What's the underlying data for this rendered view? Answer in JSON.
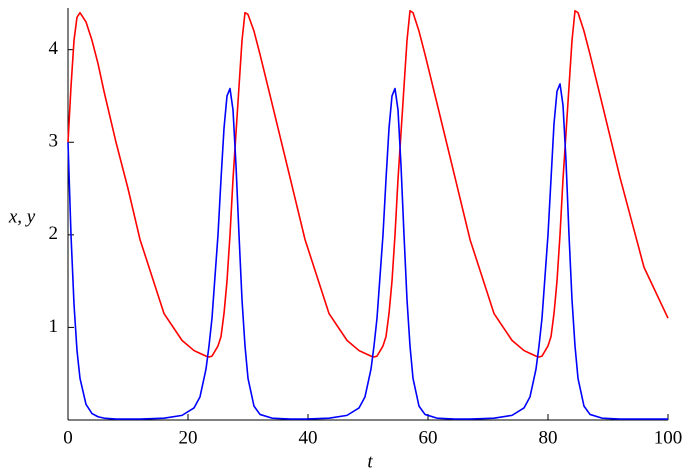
{
  "chart_data": {
    "type": "line",
    "xlabel": "t",
    "ylabel": "x, y",
    "x": [
      0,
      0.5,
      1,
      1.5,
      2,
      3,
      4,
      5,
      6,
      8,
      10,
      12,
      16,
      19,
      21,
      22,
      23,
      23.5,
      24,
      25,
      25.5,
      26,
      26.5,
      27,
      27.5,
      28,
      28.5,
      29,
      29.5,
      30,
      31,
      32,
      34,
      37,
      39.5,
      43.5,
      46.5,
      48.5,
      49.5,
      50.5,
      51,
      51.5,
      52.5,
      53,
      53.5,
      54,
      54.5,
      55,
      55.5,
      56,
      56.5,
      57,
      57.5,
      58.5,
      59.5,
      61.5,
      64.5,
      67,
      71,
      74,
      76,
      77,
      78,
      78.5,
      79,
      80,
      80.5,
      81,
      81.5,
      82,
      82.5,
      83,
      83.5,
      84,
      84.5,
      85,
      86,
      87,
      89,
      92,
      96,
      100
    ],
    "series": [
      {
        "name": "y",
        "color": "#ff0000",
        "values": [
          3.0,
          3.6,
          4.1,
          4.35,
          4.4,
          4.3,
          4.1,
          3.85,
          3.55,
          3.0,
          2.5,
          1.95,
          1.15,
          0.86,
          0.75,
          0.72,
          0.69,
          0.68,
          0.69,
          0.8,
          0.9,
          1.15,
          1.5,
          2.0,
          2.6,
          3.1,
          3.6,
          4.1,
          4.4,
          4.38,
          4.2,
          3.95,
          3.42,
          2.62,
          1.95,
          1.15,
          0.86,
          0.75,
          0.72,
          0.69,
          0.68,
          0.69,
          0.8,
          0.9,
          1.15,
          1.5,
          2.0,
          2.6,
          3.1,
          3.6,
          4.1,
          4.42,
          4.4,
          4.2,
          3.95,
          3.42,
          2.62,
          1.95,
          1.15,
          0.86,
          0.75,
          0.72,
          0.69,
          0.68,
          0.69,
          0.8,
          0.9,
          1.15,
          1.5,
          2.0,
          2.6,
          3.1,
          3.6,
          4.1,
          4.42,
          4.4,
          4.2,
          3.95,
          3.42,
          2.62,
          1.65,
          1.1
        ]
      },
      {
        "name": "x",
        "color": "#0000ff",
        "values": [
          3.0,
          2.0,
          1.25,
          0.75,
          0.45,
          0.17,
          0.07,
          0.035,
          0.02,
          0.01,
          0.01,
          0.01,
          0.02,
          0.05,
          0.13,
          0.25,
          0.55,
          0.8,
          1.1,
          2.0,
          2.6,
          3.15,
          3.5,
          3.58,
          3.35,
          2.75,
          2.0,
          1.3,
          0.8,
          0.45,
          0.15,
          0.06,
          0.02,
          0.01,
          0.01,
          0.02,
          0.05,
          0.13,
          0.25,
          0.55,
          0.8,
          1.1,
          2.0,
          2.6,
          3.15,
          3.5,
          3.58,
          3.35,
          2.75,
          2.0,
          1.3,
          0.8,
          0.45,
          0.15,
          0.06,
          0.02,
          0.01,
          0.01,
          0.02,
          0.05,
          0.13,
          0.25,
          0.55,
          0.8,
          1.1,
          2.0,
          2.6,
          3.2,
          3.55,
          3.63,
          3.4,
          2.8,
          2.0,
          1.3,
          0.8,
          0.45,
          0.15,
          0.06,
          0.02,
          0.01,
          0.01,
          0.01
        ]
      }
    ],
    "xlim": [
      0,
      100
    ],
    "ylim": [
      0,
      4.45
    ],
    "xticks": [
      0,
      20,
      40,
      60,
      80,
      100
    ],
    "yticks": [
      1,
      2,
      3,
      4
    ]
  }
}
